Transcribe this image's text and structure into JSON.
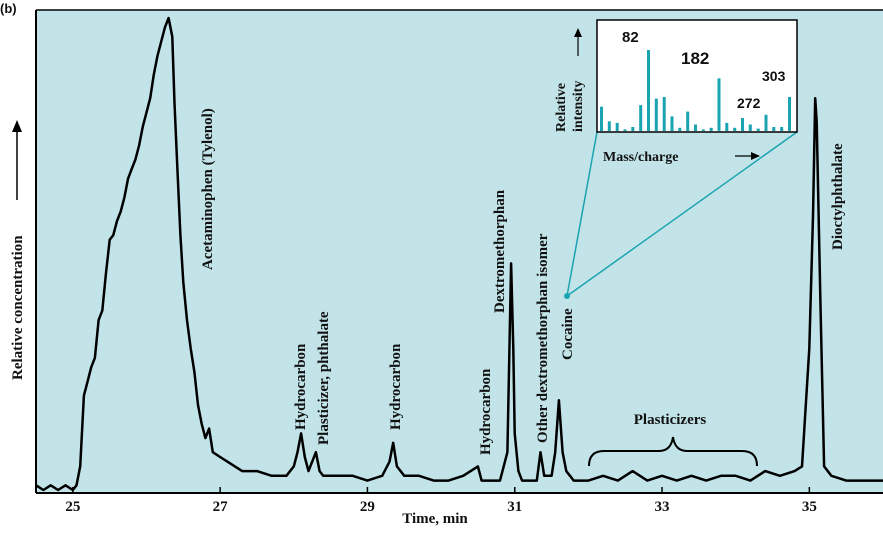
{
  "panel_label": "(b)",
  "chart_data": {
    "type": "line",
    "xlabel": "Time, min",
    "ylabel": "Relative concentration",
    "xlim": [
      24.5,
      36
    ],
    "ylim": [
      0,
      100
    ],
    "xticks": [
      "25",
      "27",
      "29",
      "31",
      "33",
      "35"
    ],
    "xtick_values": [
      25,
      27,
      29,
      31,
      33,
      35
    ],
    "grid": false,
    "colors": {
      "background": "#c2e4e8",
      "trace": "#000000",
      "accent": "#1aa3b0"
    },
    "series": [
      {
        "x": [
          24.5,
          24.6,
          24.7,
          24.8,
          24.9,
          25.0,
          25.05,
          25.1,
          25.15,
          25.2,
          25.25,
          25.3,
          25.35,
          25.4,
          25.45,
          25.5,
          25.55,
          25.6,
          25.65,
          25.7,
          25.75,
          25.8,
          25.85,
          25.9,
          25.95,
          26.0,
          26.05,
          26.1,
          26.15,
          26.2,
          26.25,
          26.3,
          26.35,
          26.38,
          26.42,
          26.46,
          26.5,
          26.55,
          26.6,
          26.65,
          26.7,
          26.75,
          26.8,
          26.85,
          26.9,
          27.0,
          27.1,
          27.2,
          27.3,
          27.5,
          27.7,
          27.9,
          28.0,
          28.05,
          28.1,
          28.15,
          28.2,
          28.3,
          28.35,
          28.4,
          28.6,
          28.8,
          29.0,
          29.2,
          29.3,
          29.35,
          29.4,
          29.5,
          29.7,
          29.9,
          30.1,
          30.3,
          30.5,
          30.55,
          30.6,
          30.7,
          30.8,
          30.9,
          30.95,
          30.98,
          31.0,
          31.05,
          31.1,
          31.2,
          31.3,
          31.35,
          31.4,
          31.5,
          31.55,
          31.6,
          31.65,
          31.7,
          31.75,
          31.8,
          31.9,
          32.0,
          32.2,
          32.4,
          32.6,
          32.8,
          33.0,
          33.2,
          33.4,
          33.6,
          33.8,
          34.0,
          34.2,
          34.4,
          34.6,
          34.8,
          34.9,
          35.0,
          35.05,
          35.08,
          35.1,
          35.15,
          35.2,
          35.3,
          35.5,
          35.7,
          36.0
        ],
        "y": [
          1,
          0,
          1,
          0,
          1,
          0,
          1,
          5,
          20,
          23,
          26,
          28,
          36,
          38,
          46,
          53,
          54,
          57,
          59,
          62,
          66,
          68,
          70,
          73,
          77,
          80,
          83,
          88,
          92,
          95,
          98,
          100,
          96,
          82,
          68,
          54,
          44,
          36,
          30,
          25,
          18,
          14,
          11,
          13,
          8,
          7,
          6,
          5,
          4,
          4,
          3,
          3,
          5,
          8,
          12,
          7,
          4,
          8,
          4,
          3,
          3,
          3,
          2,
          3,
          6,
          10,
          5,
          3,
          3,
          2,
          2,
          3,
          5,
          2,
          2,
          2,
          2,
          8,
          48,
          30,
          12,
          4,
          2,
          2,
          2,
          8,
          3,
          3,
          8,
          19,
          8,
          4,
          3,
          2,
          2,
          2,
          3,
          2,
          4,
          2,
          3,
          2,
          3,
          2,
          3,
          3,
          2,
          4,
          3,
          4,
          5,
          30,
          58,
          83,
          78,
          40,
          5,
          3,
          2,
          2,
          2
        ]
      }
    ],
    "annotations": [
      {
        "text": "Acetaminophen (Tylenol)",
        "x": 26.5
      },
      {
        "text": "Hydrocarbon",
        "x": 28.0
      },
      {
        "text": "Plasticizer, phthalate",
        "x": 28.3
      },
      {
        "text": "Hydrocarbon",
        "x": 29.3
      },
      {
        "text": "Hydrocarbon",
        "x": 30.5
      },
      {
        "text": "Dextromethorphan",
        "x": 30.9
      },
      {
        "text": "Other dextromethorphan isomer",
        "x": 31.3
      },
      {
        "text": "Cocaine",
        "x": 31.6,
        "highlight": true
      },
      {
        "text": "Plasticizers",
        "x": 33.1
      },
      {
        "text": "Dioctylphthalate",
        "x": 35.3
      }
    ],
    "inset": {
      "type": "bar",
      "xlabel": "Mass/charge",
      "ylabel_line1": "Relative",
      "ylabel_line2": "intensity",
      "peak_labels": [
        "82",
        "182",
        "272",
        "303"
      ],
      "values": [
        30,
        12,
        10,
        2,
        5,
        32,
        100,
        40,
        42,
        18,
        4,
        24,
        8,
        2,
        4,
        65,
        10,
        4,
        16,
        8,
        3,
        20,
        5,
        5,
        42
      ]
    }
  }
}
